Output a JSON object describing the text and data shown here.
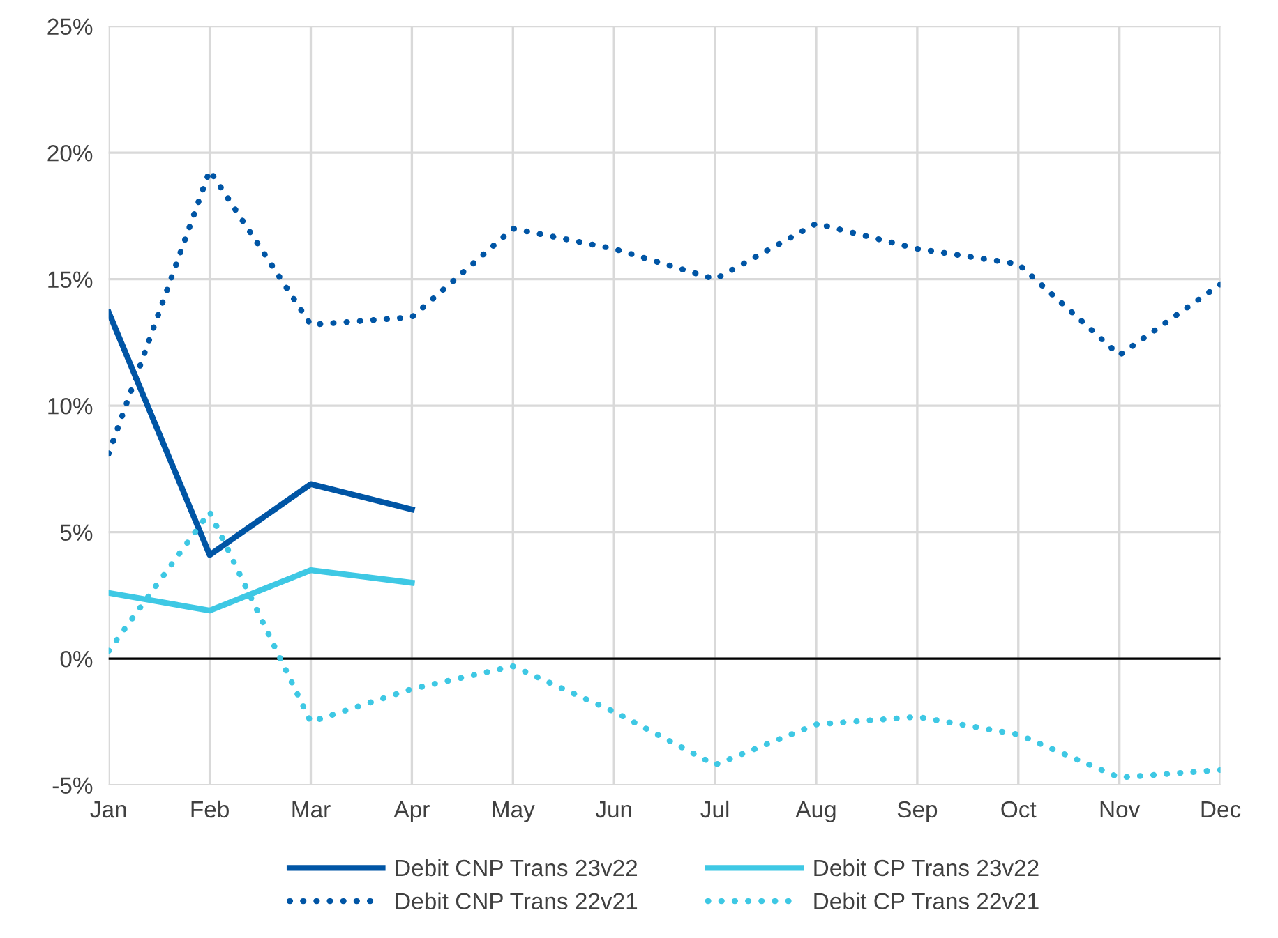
{
  "chart_data": {
    "type": "line",
    "categories": [
      "Jan",
      "Feb",
      "Mar",
      "Apr",
      "May",
      "Jun",
      "Jul",
      "Aug",
      "Sep",
      "Oct",
      "Nov",
      "Dec"
    ],
    "series": [
      {
        "name": "Debit CNP Trans 23v22",
        "color": "#0055a5",
        "line_style": "solid",
        "values": [
          13.7,
          4.1,
          6.9,
          5.9,
          null,
          null,
          null,
          null,
          null,
          null,
          null,
          null
        ]
      },
      {
        "name": "Debit CP Trans 23v22",
        "color": "#3ec8e4",
        "line_style": "solid",
        "values": [
          2.6,
          1.9,
          3.5,
          3.0,
          null,
          null,
          null,
          null,
          null,
          null,
          null,
          null
        ]
      },
      {
        "name": "Debit CNP Trans 22v21",
        "color": "#0055a5",
        "line_style": "dotted",
        "values": [
          8.1,
          19.3,
          13.2,
          13.5,
          17.0,
          16.2,
          15.0,
          17.2,
          16.2,
          15.6,
          12.0,
          14.8
        ]
      },
      {
        "name": "Debit CP Trans 22v21",
        "color": "#3ec8e4",
        "line_style": "dotted",
        "values": [
          0.3,
          5.8,
          -2.5,
          -1.2,
          -0.3,
          -2.1,
          -4.2,
          -2.6,
          -2.3,
          -3.0,
          -4.7,
          -4.4
        ]
      }
    ],
    "ylim": [
      -5,
      25
    ],
    "yticks": [
      {
        "value": -5,
        "label": "-5%"
      },
      {
        "value": 0,
        "label": "0%"
      },
      {
        "value": 5,
        "label": "5%"
      },
      {
        "value": 10,
        "label": "10%"
      },
      {
        "value": 15,
        "label": "15%"
      },
      {
        "value": 20,
        "label": "20%"
      },
      {
        "value": 25,
        "label": "25%"
      }
    ],
    "ref_lines": [
      {
        "axis": "y",
        "value": 0,
        "color": "#000000"
      }
    ],
    "grid": true,
    "legend": "bottom",
    "marker": "none"
  }
}
